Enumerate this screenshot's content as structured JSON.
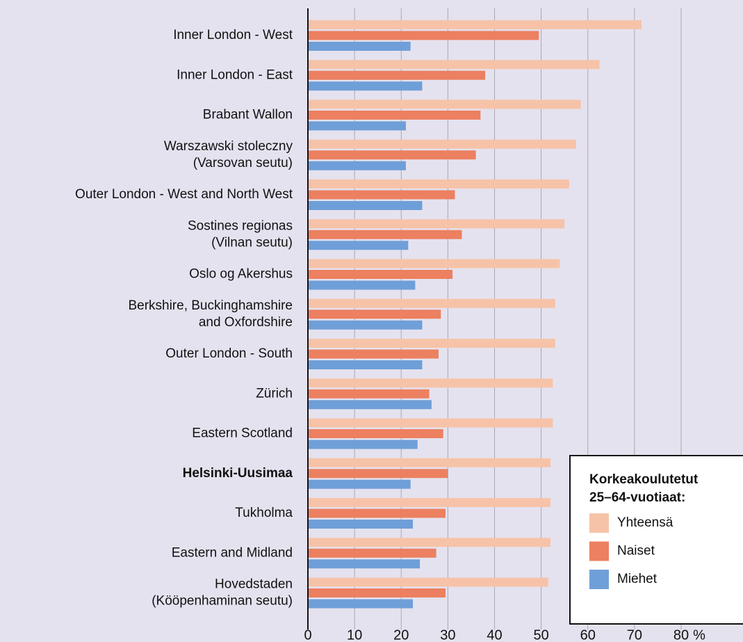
{
  "chart_data": {
    "type": "hbar",
    "categories": [
      "Inner London - West",
      "Inner London - East",
      "Brabant Wallon",
      "Warszawski stoleczny\n(Varsovan seutu)",
      "Outer London - West and North West",
      "Sostines regionas\n(Vilnan seutu)",
      "Oslo og Akershus",
      "Berkshire, Buckinghamshire\nand Oxfordshire",
      "Outer London - South",
      "Zürich",
      "Eastern Scotland",
      "Helsinki-Uusimaa",
      "Tukholma",
      "Eastern and Midland",
      "Hovedstaden\n(Kööpenhaminan seutu)"
    ],
    "bold_category": 11,
    "series": [
      {
        "name": "Yhteensä",
        "color": "#f6c3a8",
        "values": [
          71.5,
          62.5,
          58.5,
          57.5,
          56,
          55,
          54,
          53,
          53,
          52.5,
          52.5,
          52,
          52,
          52,
          51.5
        ]
      },
      {
        "name": "Naiset",
        "color": "#ec8060",
        "values": [
          49.5,
          38,
          37,
          36,
          31.5,
          33,
          31,
          28.5,
          28,
          26,
          29,
          30,
          29.5,
          27.5,
          29.5
        ]
      },
      {
        "name": "Miehet",
        "color": "#6f9fd8",
        "values": [
          22,
          24.5,
          21,
          21,
          24.5,
          21.5,
          23,
          24.5,
          24.5,
          26.5,
          23.5,
          22,
          22.5,
          24,
          22.5
        ]
      }
    ],
    "legend_title": "Korkeakoulutetut\n25–64-vuotiaat:",
    "x_unit": "%",
    "xlim": [
      0,
      80
    ],
    "xticks": [
      0,
      10,
      20,
      30,
      40,
      50,
      60,
      70,
      80
    ],
    "grid": true
  }
}
